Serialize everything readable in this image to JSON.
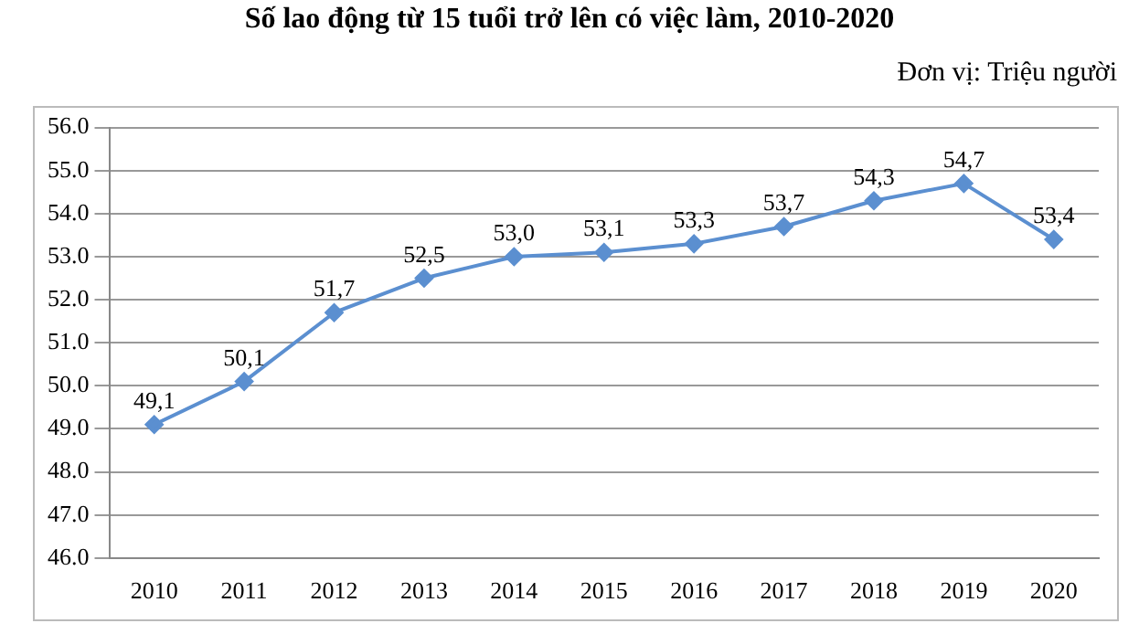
{
  "chart_data": {
    "type": "line",
    "title": "Số lao động từ 15 tuổi trở lên có việc làm, 2010-2020",
    "annotations": [
      "Đơn vị: Triệu người"
    ],
    "categories": [
      "2010",
      "2011",
      "2012",
      "2013",
      "2014",
      "2015",
      "2016",
      "2017",
      "2018",
      "2019",
      "2020"
    ],
    "series": [
      {
        "color": "#5b8fd0",
        "values": [
          49.1,
          50.1,
          51.7,
          52.5,
          53.0,
          53.1,
          53.3,
          53.7,
          54.3,
          54.7,
          53.4
        ],
        "value_labels": [
          "49,1",
          "50,1",
          "51,7",
          "52,5",
          "53,0",
          "53,1",
          "53,3",
          "53,7",
          "54,3",
          "54,7",
          "53,4"
        ]
      }
    ],
    "ylim": [
      46,
      56
    ],
    "yticks": [
      {
        "value": 46,
        "label": "46.0"
      },
      {
        "value": 47,
        "label": "47.0"
      },
      {
        "value": 48,
        "label": "48.0"
      },
      {
        "value": 49,
        "label": "49.0"
      },
      {
        "value": 50,
        "label": "50.0"
      },
      {
        "value": 51,
        "label": "51.0"
      },
      {
        "value": 52,
        "label": "52.0"
      },
      {
        "value": 53,
        "label": "53.0"
      },
      {
        "value": 54,
        "label": "54.0"
      },
      {
        "value": 55,
        "label": "55.0"
      },
      {
        "value": 56,
        "label": "56.0"
      }
    ],
    "grid": "y",
    "legend": false,
    "marker": "diamond",
    "line_style": "solid"
  }
}
